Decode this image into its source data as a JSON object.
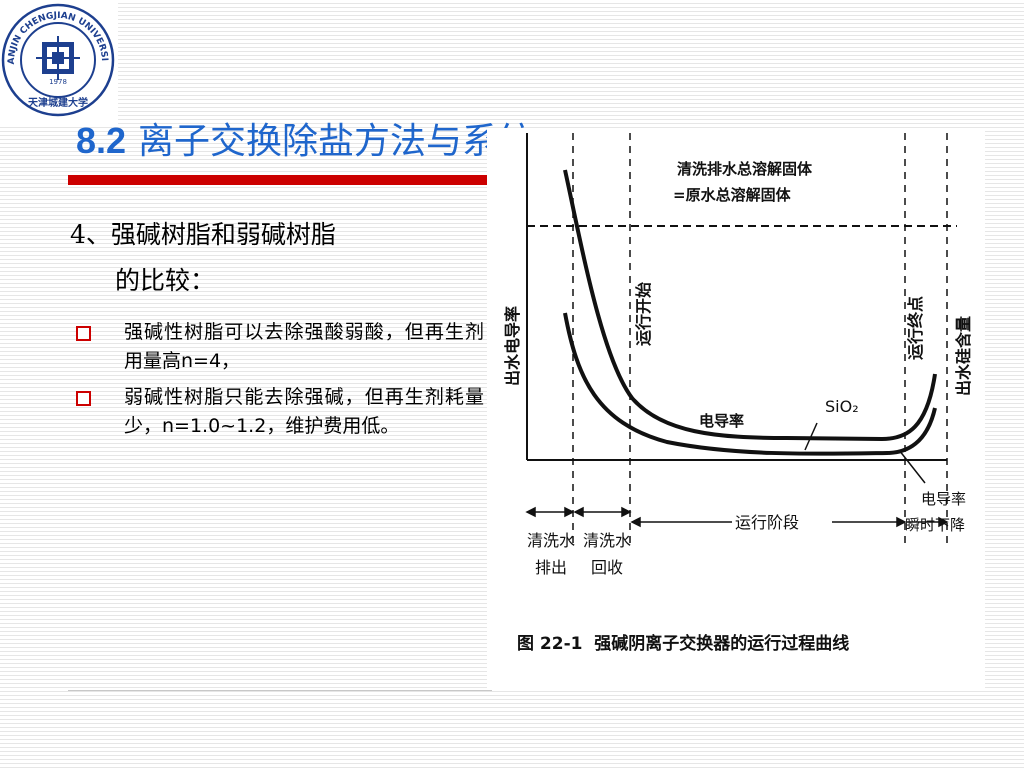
{
  "slide": {
    "title_number": "8.2",
    "title_text": "离子交换除盐方法与系统",
    "heading_line1": "4、强碱树脂和弱碱树脂",
    "heading_line2": "的比较：",
    "bullets": [
      {
        "text": "强碱性树脂可以去除强酸弱酸，但再生剂用量高n=4，"
      },
      {
        "text": "弱碱性树脂只能去除强碱，但再生剂耗量少，n=1.0~1.2，维护费用低。"
      }
    ]
  },
  "logo": {
    "ring_text": "TIANJIN CHENGJIAN UNIVERSITY",
    "inner_text": "天津城建大学",
    "year": "1978"
  },
  "figure": {
    "caption": "图 22-1  强碱阴离子交换器的运行过程曲线",
    "top_note_line1": "清洗排水总溶解固体",
    "top_note_line2": "=原水总溶解固体",
    "left_axis_label": "出水电导率",
    "right_axis_label": "出水硅含量",
    "run_start_label": "运行开始",
    "run_end_label": "运行终点",
    "conductivity_label": "电导率",
    "sio2_label": "SiO₂",
    "phase_rinse_drain_line1": "清洗水",
    "phase_rinse_drain_line2": "排出",
    "phase_rinse_recover_line1": "清洗水",
    "phase_rinse_recover_line2": "回收",
    "phase_run": "运行阶段",
    "phase_drop_line1": "电导率",
    "phase_drop_line2": "瞬时下降"
  }
}
